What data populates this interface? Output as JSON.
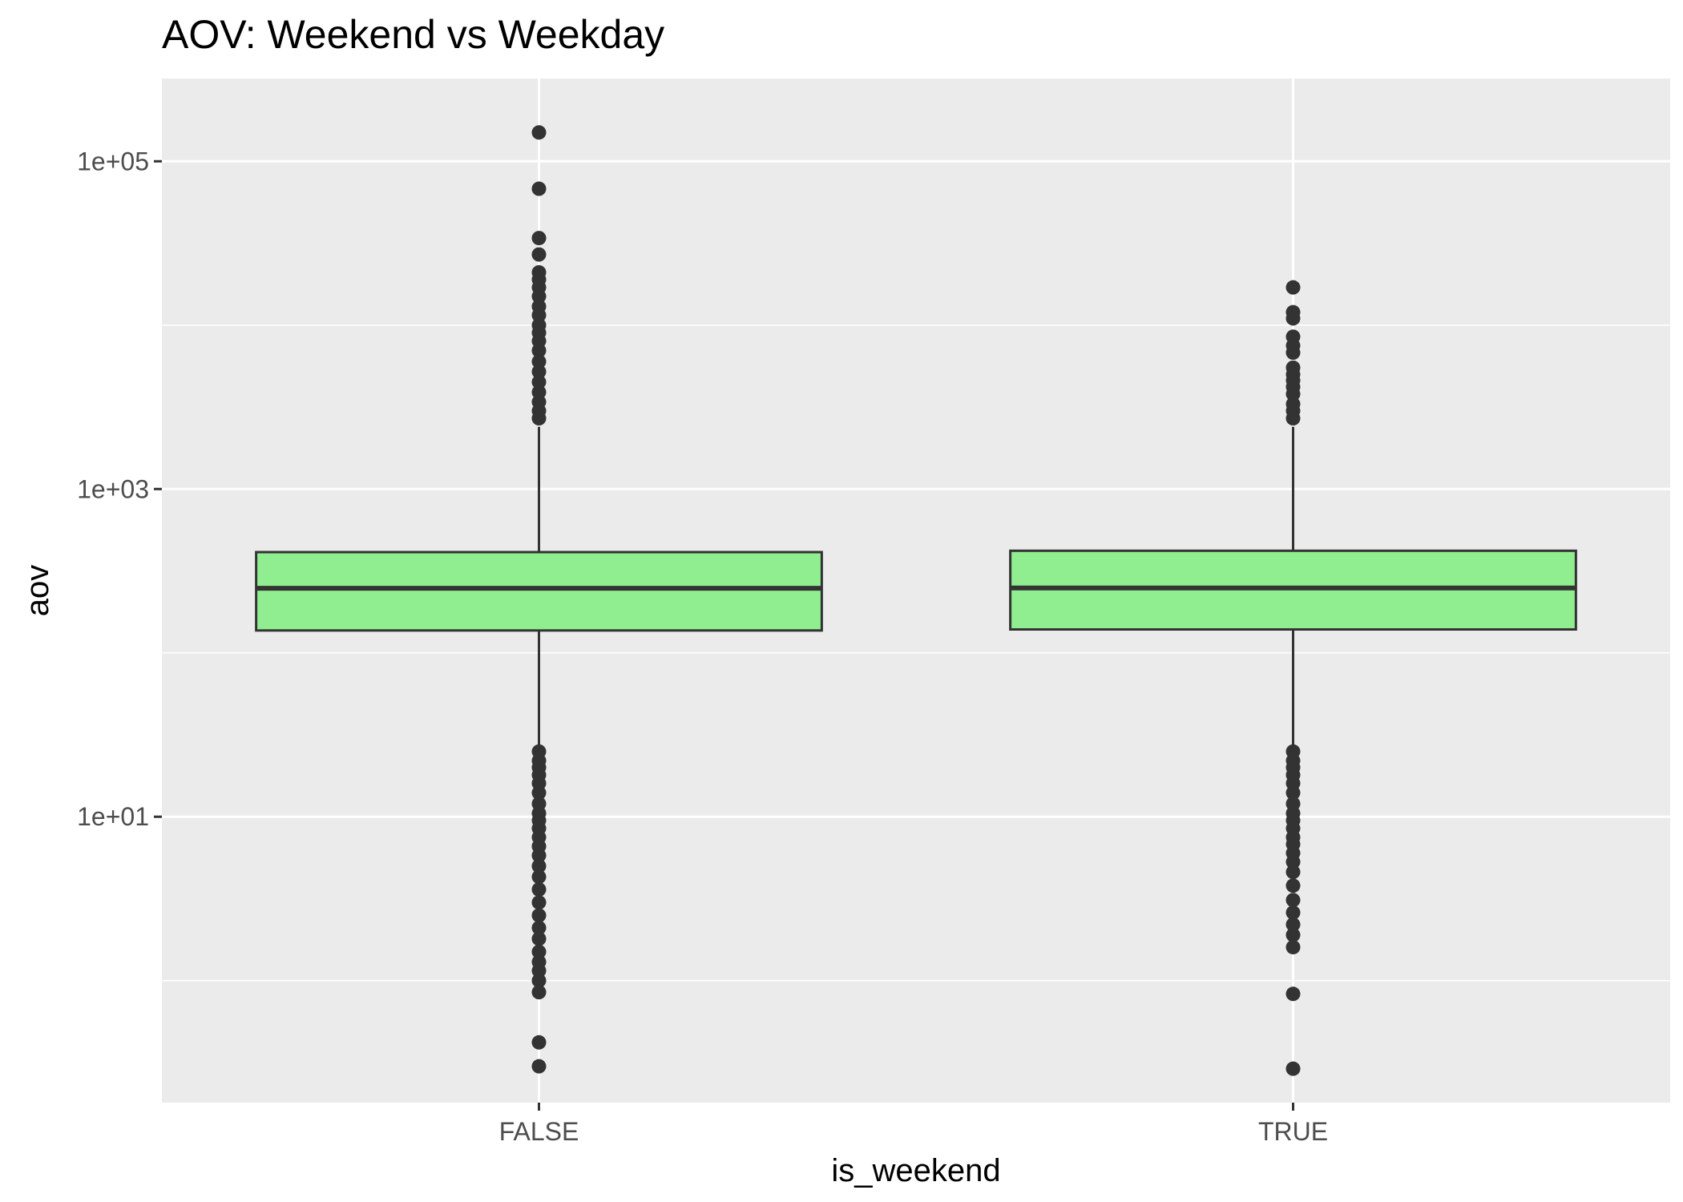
{
  "chart_data": {
    "type": "boxplot",
    "title": "AOV: Weekend vs Weekday",
    "xlabel": "is_weekend",
    "ylabel": "aov",
    "y_scale": "log10",
    "ylim": [
      0.18,
      320000
    ],
    "y_ticks": [
      {
        "value": 10,
        "label": "1e+01"
      },
      {
        "value": 1000,
        "label": "1e+03"
      },
      {
        "value": 100000,
        "label": "1e+05"
      }
    ],
    "y_minor_ticks": [
      1,
      100,
      10000
    ],
    "categories": [
      "FALSE",
      "TRUE"
    ],
    "series": [
      {
        "category": "FALSE",
        "whisker_low": 27,
        "q1": 137,
        "median": 248,
        "q3": 412,
        "whisker_high": 2400,
        "outliers": [
          150000,
          68000,
          34000,
          27000,
          21000,
          19000,
          17000,
          15000,
          13000,
          11500,
          10000,
          9000,
          8000,
          7000,
          6000,
          5200,
          4500,
          3900,
          3400,
          3000,
          2700,
          25,
          22,
          20,
          18,
          16,
          14,
          12,
          10.5,
          9.5,
          8.5,
          7.5,
          6.6,
          5.8,
          5.0,
          4.3,
          3.6,
          3.0,
          2.5,
          2.1,
          1.8,
          1.5,
          1.3,
          1.15,
          1.0,
          0.85,
          0.42,
          0.3
        ]
      },
      {
        "category": "TRUE",
        "whisker_low": 27,
        "q1": 139,
        "median": 249,
        "q3": 420,
        "whisker_high": 2400,
        "outliers": [
          17000,
          12000,
          11000,
          8500,
          7500,
          6800,
          5500,
          5000,
          4600,
          4200,
          3800,
          3300,
          3000,
          2700,
          25,
          22,
          20,
          18,
          16,
          14,
          12,
          10.5,
          9.5,
          8.5,
          7.5,
          6.8,
          6.0,
          5.3,
          4.6,
          3.8,
          3.1,
          2.6,
          2.2,
          1.9,
          1.6,
          0.83,
          0.29
        ]
      }
    ],
    "box_fill": "#90ee90",
    "box_line": "#333333",
    "panel_background": "#ebebeb",
    "grid_color": "#ffffff",
    "grid": true,
    "legend": "none"
  }
}
